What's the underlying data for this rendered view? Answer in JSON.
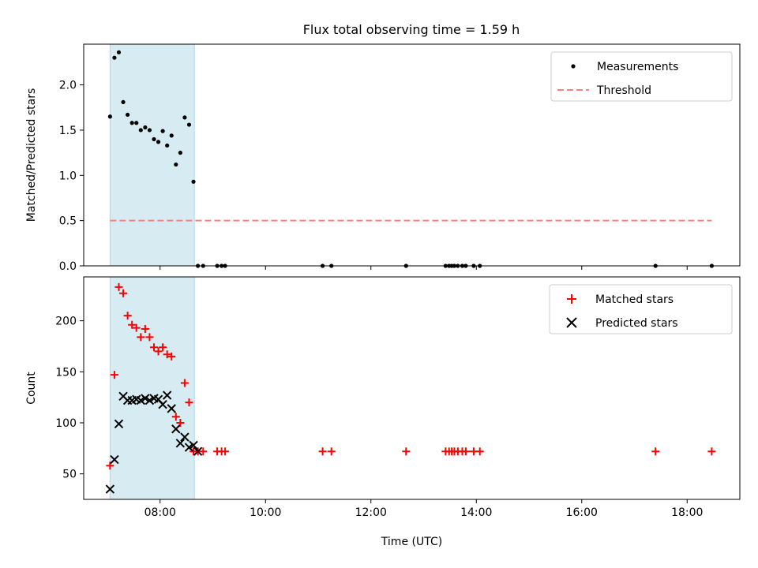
{
  "title": "Flux total observing time = 1.59 h",
  "colors": {
    "shade": "#add8e6",
    "threshold": "#ff7f7f",
    "matched": "#ff0000",
    "predicted": "#000000",
    "measurements": "#000000"
  },
  "chart_data": [
    {
      "type": "scatter",
      "ylabel": "Matched/Predicted stars",
      "ylim": [
        0,
        2.45
      ],
      "xlim": [
        "06:33",
        "19:00"
      ],
      "yticks": [
        0.0,
        0.5,
        1.0,
        1.5,
        2.0
      ],
      "ytick_labels": [
        "0.0",
        "0.5",
        "1.0",
        "1.5",
        "2.0"
      ],
      "shaded_interval": [
        "07:03",
        "08:39"
      ],
      "legend": {
        "position": "top-right",
        "entries": [
          "Measurements",
          "Threshold"
        ]
      },
      "threshold": {
        "value": 0.5,
        "x": [
          "07:03",
          "18:28"
        ]
      },
      "measurements": {
        "x": [
          "07:03",
          "07:08",
          "07:13",
          "07:18",
          "07:23",
          "07:28",
          "07:33",
          "07:38",
          "07:43",
          "07:48",
          "07:53",
          "07:58",
          "08:03",
          "08:08",
          "08:13",
          "08:18",
          "08:23",
          "08:28",
          "08:33",
          "08:38",
          "08:43",
          "08:49",
          "09:05",
          "09:10",
          "09:14",
          "11:05",
          "11:15",
          "12:40",
          "13:25",
          "13:29",
          "13:32",
          "13:35",
          "13:39",
          "13:44",
          "13:48",
          "13:57",
          "14:04",
          "17:24",
          "18:28"
        ],
        "y": [
          1.65,
          2.3,
          2.36,
          1.81,
          1.67,
          1.58,
          1.58,
          1.5,
          1.53,
          1.5,
          1.4,
          1.37,
          1.49,
          1.33,
          1.44,
          1.12,
          1.25,
          1.64,
          1.56,
          0.93,
          0.0,
          0.0,
          0.0,
          0.0,
          0.0,
          0.0,
          0.0,
          0.0,
          0.0,
          0.0,
          0.0,
          0.0,
          0.0,
          0.0,
          0.0,
          0.0,
          0.0,
          0.0,
          0.0
        ]
      }
    },
    {
      "type": "scatter",
      "ylabel": "Count",
      "xlabel": "Time (UTC)",
      "ylim": [
        25,
        243
      ],
      "xlim": [
        "06:33",
        "19:00"
      ],
      "yticks": [
        50,
        100,
        150,
        200
      ],
      "ytick_labels": [
        "50",
        "100",
        "150",
        "200"
      ],
      "xticks": [
        "08:00",
        "10:00",
        "12:00",
        "14:00",
        "16:00",
        "18:00"
      ],
      "xtick_labels": [
        "08:00",
        "10:00",
        "12:00",
        "14:00",
        "16:00",
        "18:00"
      ],
      "shaded_interval": [
        "07:03",
        "08:39"
      ],
      "legend": {
        "position": "top-right",
        "entries": [
          "Matched stars",
          "Predicted stars"
        ]
      },
      "series": [
        {
          "name": "Matched stars",
          "marker": "plus",
          "x": [
            "07:03",
            "07:08",
            "07:13",
            "07:18",
            "07:23",
            "07:28",
            "07:33",
            "07:38",
            "07:43",
            "07:48",
            "07:53",
            "07:58",
            "08:03",
            "08:08",
            "08:13",
            "08:18",
            "08:23",
            "08:28",
            "08:33",
            "08:38",
            "08:43",
            "08:49",
            "09:05",
            "09:10",
            "09:14",
            "11:05",
            "11:15",
            "12:40",
            "13:25",
            "13:29",
            "13:32",
            "13:35",
            "13:39",
            "13:44",
            "13:48",
            "13:57",
            "14:04",
            "17:24",
            "18:28"
          ],
          "y": [
            58,
            147,
            233,
            227,
            205,
            196,
            193,
            184,
            192,
            184,
            174,
            170,
            174,
            167,
            165,
            106,
            100,
            139,
            120,
            72,
            72,
            72,
            72,
            72,
            72,
            72,
            72,
            72,
            72,
            72,
            72,
            72,
            72,
            72,
            72,
            72,
            72,
            72,
            72
          ]
        },
        {
          "name": "Predicted stars",
          "marker": "x",
          "x": [
            "07:03",
            "07:08",
            "07:13",
            "07:18",
            "07:23",
            "07:28",
            "07:33",
            "07:38",
            "07:43",
            "07:48",
            "07:53",
            "07:58",
            "08:03",
            "08:08",
            "08:13",
            "08:18",
            "08:23",
            "08:28",
            "08:33",
            "08:38",
            "08:43"
          ],
          "y": [
            35,
            64,
            99,
            126,
            122,
            122,
            123,
            122,
            124,
            122,
            124,
            123,
            118,
            127,
            114,
            94,
            80,
            86,
            76,
            78,
            72
          ]
        }
      ]
    }
  ]
}
